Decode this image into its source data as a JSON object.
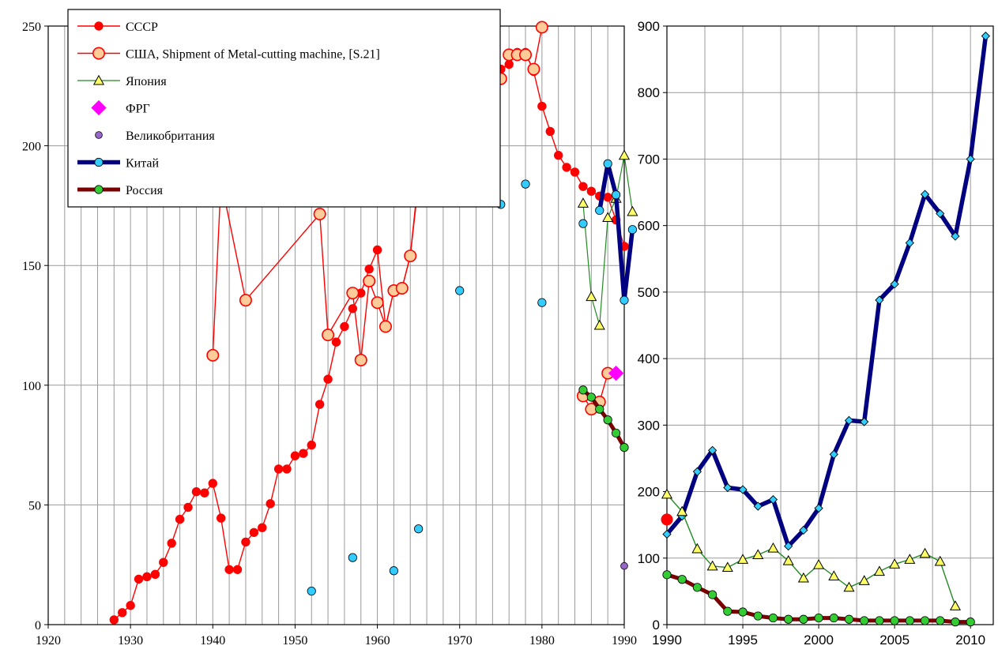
{
  "chart_data": [
    {
      "id": "left",
      "type": "line",
      "xlim": [
        1920,
        1990
      ],
      "ylim": [
        0,
        250
      ],
      "x_ticks": [
        1920,
        1930,
        1940,
        1950,
        1960,
        1970,
        1980,
        1990
      ],
      "y_ticks": [
        0,
        50,
        100,
        150,
        200,
        250
      ],
      "grid": true,
      "legend_position": "top-left",
      "series": [
        {
          "name": "СССР",
          "color": "#ff0000",
          "line": true,
          "marker": "circle",
          "x": [
            1928,
            1929,
            1930,
            1931,
            1932,
            1933,
            1934,
            1935,
            1936,
            1937,
            1938,
            1939,
            1940,
            1941,
            1942,
            1943,
            1944,
            1945,
            1946,
            1947,
            1948,
            1949,
            1950,
            1951,
            1952,
            1953,
            1954,
            1955,
            1956,
            1957,
            1958,
            1959,
            1960,
            1961,
            1962,
            1963,
            1964,
            1965,
            1966,
            1967,
            1968,
            1969,
            1970,
            1971,
            1972,
            1973,
            1974,
            1975,
            1976,
            1977,
            1978,
            1979,
            1980,
            1981,
            1982,
            1983,
            1984,
            1985,
            1986,
            1987,
            1988,
            1989,
            1990
          ],
          "y": [
            2,
            5,
            8,
            19,
            20,
            21,
            26,
            34,
            44,
            49,
            55.5,
            55,
            59,
            44.5,
            23,
            23,
            34.5,
            38.5,
            40.5,
            50.5,
            65,
            65,
            70.5,
            71.5,
            75,
            92,
            102.5,
            118,
            124.5,
            132,
            138.5,
            148.5,
            156.5,
            124.5,
            139.5,
            140.5,
            154,
            187,
            192.5,
            198,
            201.5,
            206,
            203,
            208,
            212,
            214.5,
            226.5,
            232,
            234,
            239,
            239,
            231,
            216.5,
            206,
            196,
            191,
            189,
            183,
            181,
            179,
            178.5,
            169,
            158
          ]
        },
        {
          "name": "США, Shipment of Metal-cutting machine, [S.21]",
          "color": "#ff0000",
          "fill": "#ffcc99",
          "line": true,
          "marker": "circle-open",
          "x": [
            1940,
            1941,
            1944,
            1953,
            1954,
            1957,
            1958,
            1959,
            1960,
            1961,
            1962,
            1963,
            1964,
            1965,
            1966,
            1967,
            1968,
            1969,
            1970
          ],
          "y": [
            112.5,
            185.5,
            135.5,
            171.5,
            121,
            138.5,
            110.5,
            143.5,
            134.5,
            124.5,
            139.5,
            140.5,
            154,
            184.5,
            243.5,
            237,
            227,
            231,
            189.5
          ],
          "segments": [
            {
              "x": [
                1975,
                1976,
                1977,
                1978,
                1979,
                1980
              ],
              "y": [
                228,
                238,
                238,
                238,
                232,
                249.5
              ]
            },
            {
              "x": [
                1985,
                1986,
                1987,
                1988
              ],
              "y": [
                95.5,
                90,
                93,
                105
              ]
            }
          ]
        },
        {
          "name": "Япония",
          "color": "#228b22",
          "fill": "#ffff66",
          "line": true,
          "marker": "triangle",
          "x": [
            1985,
            1986,
            1987,
            1988,
            1989,
            1990,
            1991
          ],
          "y": [
            176,
            137,
            125,
            170,
            178,
            196,
            172.5
          ]
        },
        {
          "name": "ФРГ",
          "color": "#ff00ff",
          "line": false,
          "marker": "diamond",
          "x": [
            1989
          ],
          "y": [
            105
          ]
        },
        {
          "name": "Великобритания",
          "color": "#9966cc",
          "line": false,
          "marker": "circle-small",
          "x": [
            1990
          ],
          "y": [
            24.5
          ]
        },
        {
          "name": "Китай",
          "color": "#000080",
          "fill": "#33ccff",
          "line": true,
          "marker": "circle",
          "x": [
            1952,
            1957,
            1962,
            1965,
            1970,
            1975,
            1978,
            1980,
            1985,
            1987,
            1988,
            1989,
            1990,
            1991
          ],
          "y": [
            14,
            28,
            22.5,
            40,
            139.5,
            175.5,
            184,
            134.5,
            167.5,
            173,
            192.5,
            179.5,
            135.5,
            165
          ],
          "line_from_index": 9
        },
        {
          "name": "Россия",
          "color": "#7a0000",
          "fill": "#33cc33",
          "line": true,
          "marker": "circle",
          "x": [
            1985,
            1986,
            1987,
            1988,
            1989,
            1990
          ],
          "y": [
            98,
            95,
            90,
            85.5,
            80,
            74
          ]
        }
      ]
    },
    {
      "id": "right",
      "type": "line",
      "xlim": [
        1990,
        2011.5
      ],
      "ylim": [
        0,
        900
      ],
      "x_ticks": [
        1990,
        1995,
        2000,
        2005,
        2010
      ],
      "y_ticks": [
        0,
        100,
        200,
        300,
        400,
        500,
        600,
        700,
        800,
        900
      ],
      "grid": true,
      "series": [
        {
          "name": "Китай",
          "color": "#000080",
          "fill": "#33ccff",
          "marker": "diamond",
          "x": [
            1990,
            1991,
            1992,
            1993,
            1994,
            1995,
            1996,
            1997,
            1998,
            1999,
            2000,
            2001,
            2002,
            2003,
            2004,
            2005,
            2006,
            2007,
            2008,
            2009,
            2010,
            2011
          ],
          "y": [
            136,
            163,
            230,
            262,
            206,
            203,
            178,
            188,
            118,
            142,
            175,
            256,
            307,
            305,
            488,
            512,
            574,
            647,
            618,
            584,
            700,
            885
          ]
        },
        {
          "name": "Япония",
          "color": "#228b22",
          "fill": "#ffff66",
          "marker": "triangle",
          "x": [
            1990,
            1991,
            1992,
            1993,
            1994,
            1995,
            1996,
            1997,
            1998,
            1999,
            2000,
            2001,
            2002,
            2003,
            2004,
            2005,
            2006,
            2007,
            2008,
            2009
          ],
          "y": [
            196,
            170,
            114,
            88,
            86,
            98,
            105,
            115,
            96,
            70,
            90,
            73,
            56,
            66,
            80,
            91,
            98,
            107,
            95,
            28
          ]
        },
        {
          "name": "Россия",
          "color": "#7a0000",
          "fill": "#33cc33",
          "marker": "circle",
          "x": [
            1990,
            1991,
            1992,
            1993,
            1994,
            1995,
            1996,
            1997,
            1998,
            1999,
            2000,
            2001,
            2002,
            2003,
            2004,
            2005,
            2006,
            2007,
            2008,
            2009,
            2010
          ],
          "y": [
            75,
            68,
            56,
            45,
            20,
            19,
            13,
            10,
            8,
            8,
            10,
            10,
            8,
            6,
            6,
            6,
            6,
            6,
            6,
            4,
            4
          ]
        },
        {
          "name": "СССР",
          "color": "#ff0000",
          "marker": "circle-large",
          "x": [
            1990
          ],
          "y": [
            158
          ]
        }
      ]
    }
  ]
}
